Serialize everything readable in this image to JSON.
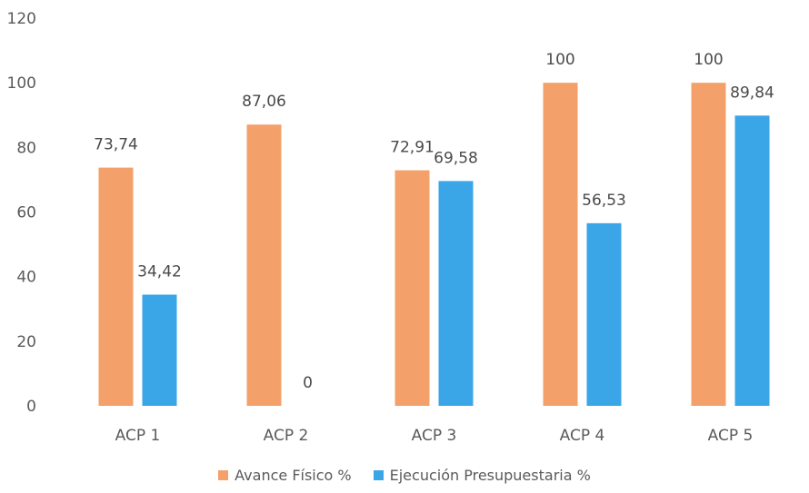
{
  "chart_data": {
    "type": "bar",
    "categories": [
      "ACP 1",
      "ACP 2",
      "ACP 3",
      "ACP 4",
      "ACP 5"
    ],
    "series": [
      {
        "name": "Avance Físico %",
        "values": [
          73.74,
          87.06,
          72.91,
          100,
          100
        ],
        "labels": [
          "73,74",
          "87,06",
          "72,91",
          "100",
          "100"
        ],
        "color": "#f4a06a"
      },
      {
        "name": "Ejecución Presupuestaria %",
        "values": [
          34.42,
          0,
          69.58,
          56.53,
          89.84
        ],
        "labels": [
          "34,42",
          "0",
          "69,58",
          "56,53",
          "89,84"
        ],
        "color": "#3aa6e8"
      }
    ],
    "ylim": [
      0,
      120
    ],
    "yticks": [
      0,
      20,
      40,
      60,
      80,
      100,
      120
    ],
    "grid": false,
    "legend_position": "bottom"
  }
}
